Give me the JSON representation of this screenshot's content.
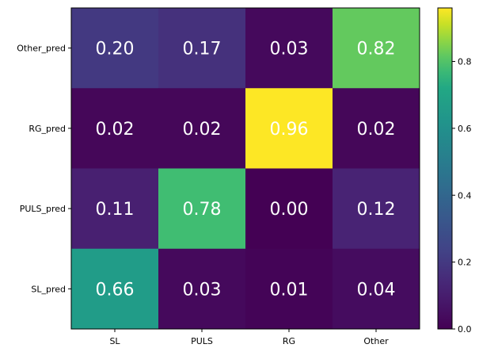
{
  "chart_data": {
    "type": "heatmap",
    "title": "",
    "xlabel": "",
    "ylabel": "",
    "x_categories": [
      "SL",
      "PULS",
      "RG",
      "Other"
    ],
    "y_categories": [
      "Other_pred",
      "RG_pred",
      "PULS_pred",
      "SL_pred"
    ],
    "values": [
      [
        0.2,
        0.17,
        0.03,
        0.82
      ],
      [
        0.02,
        0.02,
        0.96,
        0.02
      ],
      [
        0.11,
        0.78,
        0.0,
        0.12
      ],
      [
        0.66,
        0.03,
        0.01,
        0.04
      ]
    ],
    "value_labels": [
      [
        "0.20",
        "0.17",
        "0.03",
        "0.82"
      ],
      [
        "0.02",
        "0.02",
        "0.96",
        "0.02"
      ],
      [
        "0.11",
        "0.78",
        "0.00",
        "0.12"
      ],
      [
        "0.66",
        "0.03",
        "0.01",
        "0.04"
      ]
    ],
    "colormap": "viridis",
    "vmin": 0.0,
    "vmax": 0.96,
    "annotation_color": "#ffffff",
    "colorbar": {
      "ticks": [
        0.0,
        0.2,
        0.4,
        0.6,
        0.8
      ],
      "tick_labels": [
        "0.0",
        "0.2",
        "0.4",
        "0.6",
        "0.8"
      ],
      "placement": "right"
    }
  }
}
